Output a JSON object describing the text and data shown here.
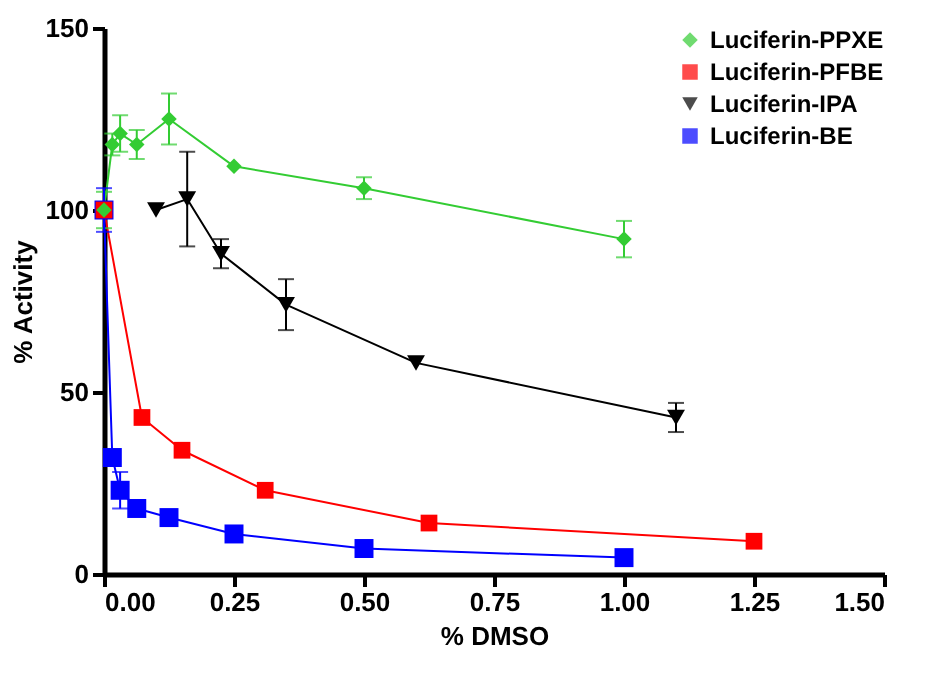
{
  "chart_data": {
    "type": "line",
    "xlabel": "% DMSO",
    "ylabel": "% Activity",
    "xlim": [
      0,
      1.5
    ],
    "ylim": [
      0,
      150
    ],
    "xticks": [
      {
        "value": 0,
        "label": "0.00"
      },
      {
        "value": 0.25,
        "label": "0.25"
      },
      {
        "value": 0.5,
        "label": "0.50"
      },
      {
        "value": 0.75,
        "label": "0.75"
      },
      {
        "value": 1,
        "label": "1.00"
      },
      {
        "value": 1.25,
        "label": "1.25"
      },
      {
        "value": 1.5,
        "label": "1.50"
      }
    ],
    "yticks": [
      0,
      50,
      100,
      150
    ],
    "grid": false,
    "legend": "top right",
    "line_style": "solid",
    "series": [
      {
        "name": "Luciferin-PPXE",
        "color": "#33cc33",
        "marker": "diamond",
        "x": [
          0,
          0.016,
          0.031,
          0.063,
          0.125,
          0.25,
          0.5,
          1.0
        ],
        "values": [
          100,
          118,
          121,
          118,
          125,
          112,
          106,
          92
        ],
        "errors": [
          5,
          3,
          5,
          4,
          7,
          null,
          3,
          5
        ]
      },
      {
        "name": "Luciferin-PFBE",
        "color": "#ff0000",
        "marker": "square",
        "x": [
          0,
          0.073,
          0.15,
          0.31,
          0.625,
          1.25
        ],
        "values": [
          100,
          43,
          34,
          23,
          14,
          9
        ],
        "errors": [
          null,
          null,
          null,
          null,
          null,
          null
        ]
      },
      {
        "name": "Luciferin-IPA",
        "color": "#000000",
        "marker": "triangle-down",
        "x": [
          0.1,
          0.16,
          0.225,
          0.35,
          0.6,
          1.1
        ],
        "values": [
          100,
          103,
          88,
          74,
          58,
          43
        ],
        "errors": [
          null,
          13,
          4,
          7,
          null,
          4
        ]
      },
      {
        "name": "Luciferin-BE",
        "color": "#0000ff",
        "marker": "square",
        "x": [
          0,
          0.016,
          0.031,
          0.063,
          0.125,
          0.25,
          0.5,
          1.0
        ],
        "values": [
          100,
          32,
          23,
          18,
          15.5,
          11,
          7,
          4.5
        ],
        "errors": [
          6,
          null,
          5,
          null,
          null,
          null,
          null,
          null
        ]
      }
    ]
  }
}
